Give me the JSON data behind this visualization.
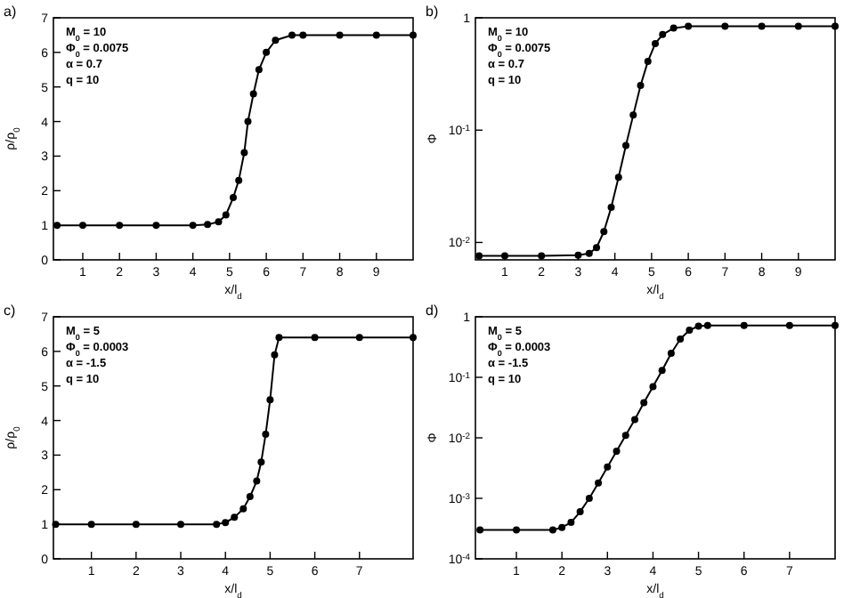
{
  "chart_data": [
    {
      "type": "line",
      "title": "a)",
      "xlabel": "x/l$_{d}$",
      "ylabel": "ρ/ρ$_{0}$",
      "xlim": [
        0.2,
        10
      ],
      "ylim": [
        0,
        7
      ],
      "xticks": [
        1,
        2,
        3,
        4,
        5,
        6,
        7,
        8,
        9
      ],
      "yticks": [
        0,
        1,
        2,
        3,
        4,
        5,
        6,
        7
      ],
      "marker": "circle",
      "annotations": [
        "M$_{0}$ = 10",
        "Φ$_{0}$ = 0.0075",
        "α = 0.7",
        "q = 10"
      ],
      "series": [
        {
          "color": "#000000",
          "x": [
            0.3,
            1,
            2,
            3,
            4,
            4.4,
            4.7,
            4.9,
            5.1,
            5.25,
            5.4,
            5.5,
            5.65,
            5.8,
            6.0,
            6.25,
            6.7,
            7,
            8,
            9,
            10
          ],
          "values": [
            1,
            1,
            1,
            1,
            1,
            1.02,
            1.1,
            1.3,
            1.8,
            2.3,
            3.1,
            4,
            4.8,
            5.5,
            6.0,
            6.35,
            6.5,
            6.5,
            6.5,
            6.5,
            6.5
          ]
        }
      ]
    },
    {
      "type": "line",
      "title": "b)",
      "xlabel": "x/l$_{d}$",
      "ylabel": "Φ",
      "log": true,
      "xlim": [
        0.2,
        10
      ],
      "ylim": [
        0.007,
        1
      ],
      "xticks": [
        1,
        2,
        3,
        4,
        5,
        6,
        7,
        8,
        9
      ],
      "yticks": [
        {
          "value": 0.01,
          "label": "10$^{-2}$"
        },
        {
          "value": 0.1,
          "label": "10$^{-1}$"
        },
        1
      ],
      "marker": "circle",
      "annotations": [
        "M$_{0}$ = 10",
        "Φ$_{0}$ = 0.0075",
        "α = 0.7",
        "q = 10"
      ],
      "series": [
        {
          "color": "#000000",
          "x": [
            0.3,
            1,
            2,
            3,
            3.3,
            3.5,
            3.7,
            3.9,
            4.1,
            4.3,
            4.5,
            4.7,
            4.9,
            5.1,
            5.3,
            5.6,
            6,
            7,
            8,
            9,
            10
          ],
          "values": [
            0.0076,
            0.0076,
            0.0076,
            0.0077,
            0.008,
            0.009,
            0.0125,
            0.0205,
            0.038,
            0.073,
            0.136,
            0.25,
            0.41,
            0.59,
            0.71,
            0.81,
            0.84,
            0.84,
            0.84,
            0.84,
            0.84
          ]
        }
      ]
    },
    {
      "type": "line",
      "title": "c)",
      "xlabel": "x/l$_{d}$",
      "ylabel": "ρ/ρ$_{0}$",
      "xlim": [
        0.15,
        8.2
      ],
      "ylim": [
        0,
        7
      ],
      "xticks": [
        1,
        2,
        3,
        4,
        5,
        6,
        7
      ],
      "yticks": [
        0,
        1,
        2,
        3,
        4,
        5,
        6,
        7
      ],
      "marker": "circle",
      "annotations": [
        "M$_{0}$ = 5",
        "Φ$_{0}$ = 0.0003",
        "α = -1.5",
        "q = 10"
      ],
      "series": [
        {
          "color": "#000000",
          "x": [
            0.2,
            1,
            2,
            3,
            3.8,
            4.0,
            4.2,
            4.4,
            4.55,
            4.7,
            4.8,
            4.9,
            5.0,
            5.1,
            5.2,
            6,
            7,
            8.2
          ],
          "values": [
            1,
            1,
            1,
            1,
            1,
            1.05,
            1.2,
            1.45,
            1.8,
            2.25,
            2.8,
            3.6,
            4.6,
            5.9,
            6.4,
            6.4,
            6.4,
            6.4
          ]
        }
      ]
    },
    {
      "type": "line",
      "title": "d)",
      "xlabel": "x/l$_{d}$",
      "ylabel": "Φ",
      "log": true,
      "xlim": [
        0.1,
        8
      ],
      "ylim": [
        0.0001,
        1
      ],
      "xticks": [
        1,
        2,
        3,
        4,
        5,
        6,
        7
      ],
      "yticks": [
        {
          "value": 0.0001,
          "label": "10$^{-4}$"
        },
        {
          "value": 0.001,
          "label": "10$^{-3}$"
        },
        {
          "value": 0.01,
          "label": "10$^{-2}$"
        },
        {
          "value": 0.1,
          "label": "10$^{-1}$"
        },
        1
      ],
      "marker": "circle",
      "annotations": [
        "M$_{0}$ = 5",
        "Φ$_{0}$ = 0.0003",
        "α = -1.5",
        "q = 10"
      ],
      "series": [
        {
          "color": "#000000",
          "x": [
            0.2,
            1,
            1.8,
            2.0,
            2.2,
            2.4,
            2.6,
            2.8,
            3.0,
            3.2,
            3.4,
            3.6,
            3.8,
            4.0,
            4.2,
            4.4,
            4.6,
            4.8,
            5.0,
            5.2,
            6,
            7,
            8
          ],
          "values": [
            0.0003,
            0.0003,
            0.0003,
            0.00033,
            0.0004,
            0.0006,
            0.001,
            0.0018,
            0.0033,
            0.006,
            0.011,
            0.02,
            0.038,
            0.07,
            0.13,
            0.25,
            0.43,
            0.6,
            0.7,
            0.72,
            0.72,
            0.72,
            0.72
          ]
        }
      ]
    }
  ]
}
